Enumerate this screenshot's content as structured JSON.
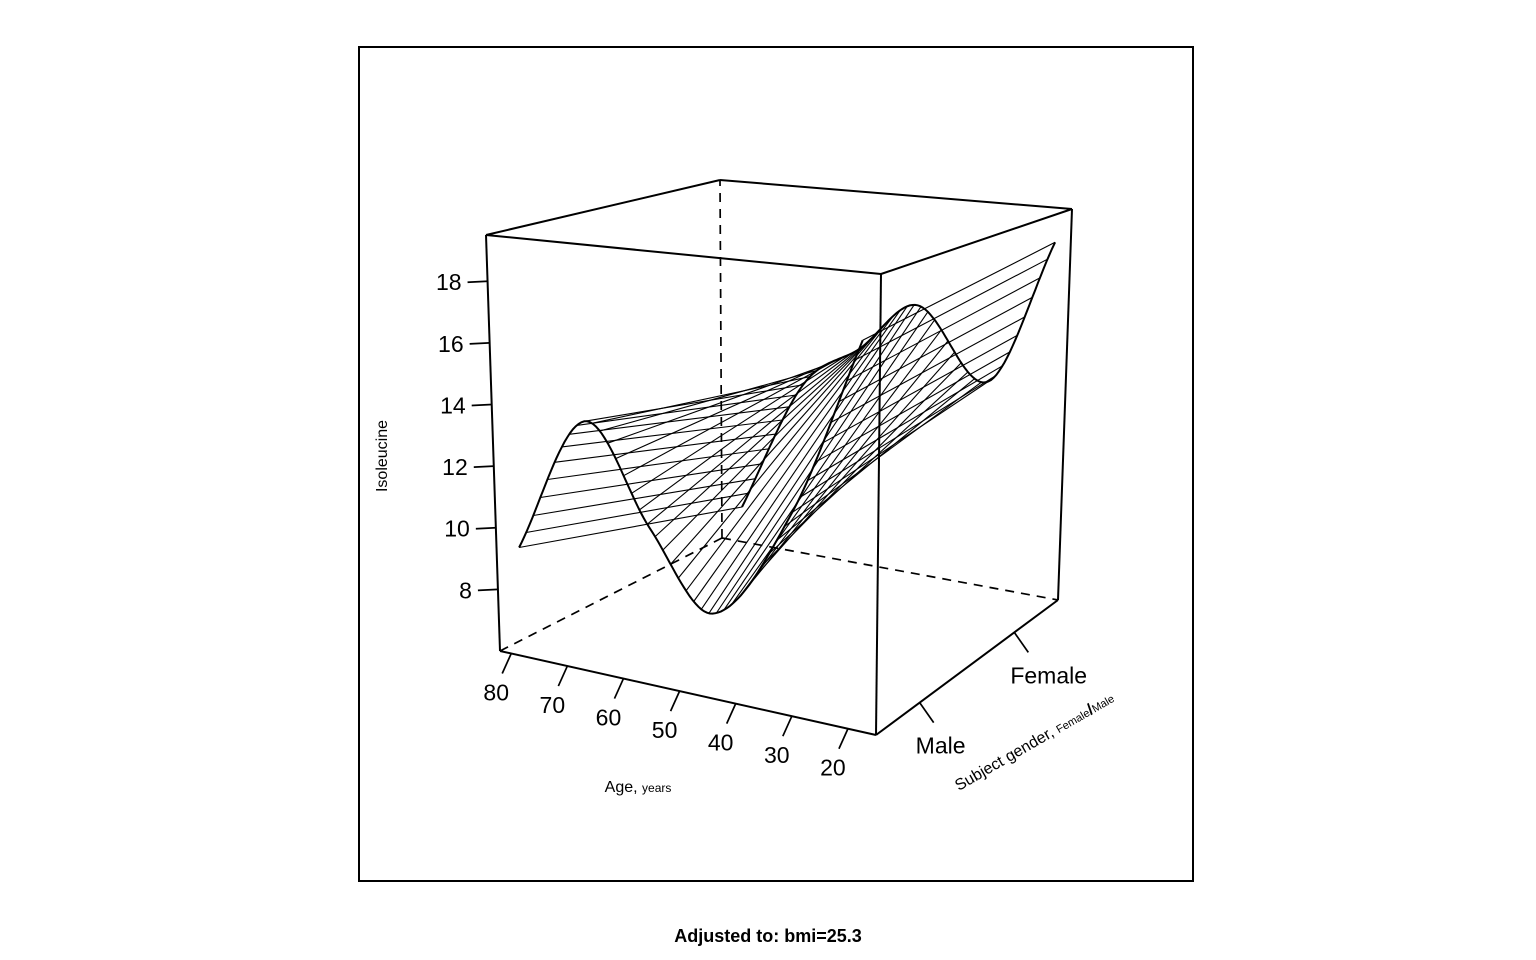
{
  "chart_data": {
    "type": "surface3d",
    "zlabel": "Isoleucine",
    "xlabel": {
      "main": "Age,",
      "unit": "years"
    },
    "ylabel": {
      "main": "Subject gender,",
      "sub1": "Female",
      "sep": "/",
      "sub2": "Male"
    },
    "xlim": [
      15,
      82
    ],
    "zlim": [
      6,
      19.5
    ],
    "x_ticks": [
      "80",
      "70",
      "60",
      "50",
      "40",
      "30",
      "20"
    ],
    "y_ticks": [
      "Male",
      "Female"
    ],
    "z_ticks": [
      "8",
      "10",
      "12",
      "14",
      "16",
      "18"
    ],
    "age_grid": [
      18,
      30,
      44,
      55,
      66,
      78
    ],
    "series": [
      {
        "name": "Male",
        "values": [
          17.5,
          12.1,
          8.6,
          10.9,
          13.9,
          9.5
        ]
      },
      {
        "name": "Female",
        "values": [
          18.3,
          13.2,
          15.6,
          13.8,
          12.2,
          7.3
        ]
      }
    ],
    "footnote": "Adjusted to: bmi=25.3"
  }
}
